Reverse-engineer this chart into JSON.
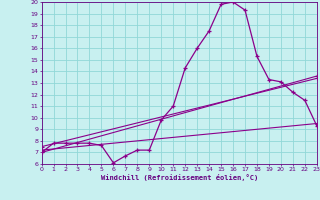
{
  "hours": [
    0,
    1,
    2,
    3,
    4,
    5,
    6,
    7,
    8,
    9,
    10,
    11,
    12,
    13,
    14,
    15,
    16,
    17,
    18,
    19,
    20,
    21,
    22,
    23
  ],
  "main_curve": [
    7.0,
    7.8,
    7.8,
    7.8,
    7.8,
    7.6,
    6.1,
    6.7,
    7.2,
    7.2,
    9.8,
    11.0,
    14.3,
    16.0,
    17.5,
    19.8,
    20.0,
    19.3,
    15.3,
    13.3,
    13.1,
    12.2,
    11.5,
    9.3
  ],
  "line1_x": [
    0,
    23
  ],
  "line1_y": [
    7.0,
    13.6
  ],
  "line2_x": [
    0,
    23
  ],
  "line2_y": [
    7.5,
    13.4
  ],
  "line3_x": [
    0,
    23
  ],
  "line3_y": [
    7.2,
    9.5
  ],
  "color_main": "#8b008b",
  "color_lines": "#8b008b",
  "bg_color": "#c8f0f0",
  "grid_color": "#90d8d8",
  "ylim": [
    6,
    20
  ],
  "xlim": [
    0,
    23
  ],
  "yticks": [
    6,
    7,
    8,
    9,
    10,
    11,
    12,
    13,
    14,
    15,
    16,
    17,
    18,
    19,
    20
  ],
  "xticks": [
    0,
    1,
    2,
    3,
    4,
    5,
    6,
    7,
    8,
    9,
    10,
    11,
    12,
    13,
    14,
    15,
    16,
    17,
    18,
    19,
    20,
    21,
    22,
    23
  ],
  "xlabel": "Windchill (Refroidissement éolien,°C)",
  "axis_label_color": "#660080",
  "tick_color": "#660080"
}
